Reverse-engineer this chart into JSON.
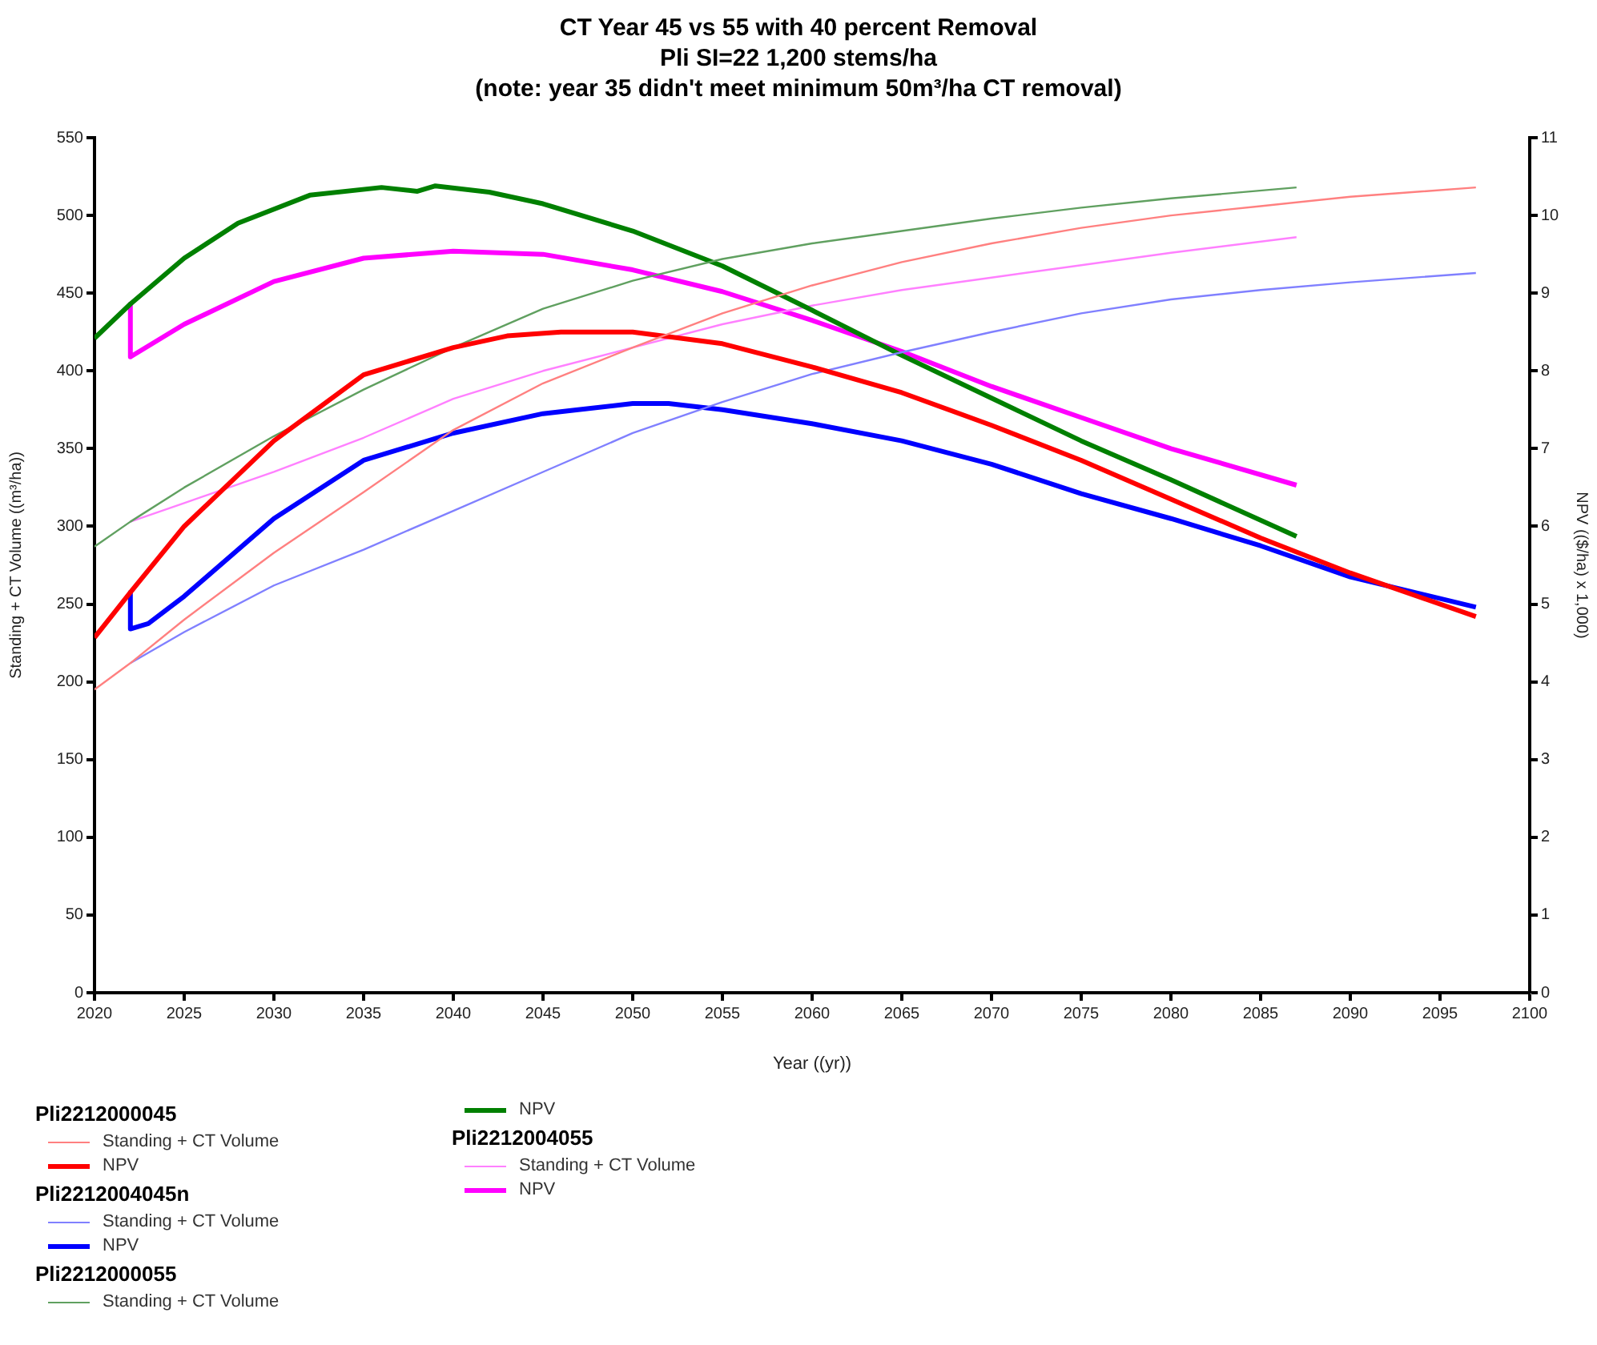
{
  "chart_data": {
    "type": "line",
    "title": "CT Year 45 vs 55 with 40 percent Removal",
    "subtitle": "Pli SI=22 1,200 stems/ha",
    "annotations": [
      "(note: year 35 didn't meet minimum 50m³/ha CT removal)",
      "Pli2212000045",
      "Pli2212004045n",
      "Pli2212000055",
      "Pli2212004055"
    ],
    "xlabel": "Year ((yr))",
    "ylabel": "Standing + CT Volume ((m³/ha))",
    "y2label": "NPV (($/ha) x 1,000)",
    "xlim": [
      2020,
      2100
    ],
    "xticks": [
      2020,
      2025,
      2030,
      2035,
      2040,
      2045,
      2050,
      2055,
      2060,
      2065,
      2070,
      2075,
      2080,
      2085,
      2090,
      2095,
      2100
    ],
    "ylim": [
      0,
      550
    ],
    "yticks": [
      0,
      50,
      100,
      150,
      200,
      250,
      300,
      350,
      400,
      450,
      500,
      550
    ],
    "y2lim": [
      0,
      11
    ],
    "y2ticks": [
      0,
      1,
      2,
      3,
      4,
      5,
      6,
      7,
      8,
      9,
      10,
      11
    ],
    "grid": false,
    "legend": "bottom",
    "marker": "none",
    "line_style": "solid",
    "series": [
      {
        "name": "Standing + CT Volume",
        "color": "#ff8080",
        "x": [
          2020,
          2022,
          2025,
          2030,
          2035,
          2040,
          2045,
          2050,
          2055,
          2060,
          2065,
          2070,
          2075,
          2080,
          2085,
          2090,
          2097
        ],
        "values": [
          195,
          212,
          240,
          283,
          322,
          362,
          392,
          415,
          437,
          455,
          470,
          482,
          492,
          500,
          506,
          512,
          518
        ]
      },
      {
        "name": "NPV",
        "color": "#ff0000",
        "axis": "y2",
        "x": [
          2020,
          2022,
          2025,
          2030,
          2035,
          2040,
          2043,
          2046,
          2050,
          2055,
          2060,
          2065,
          2070,
          2075,
          2080,
          2085,
          2090,
          2097
        ],
        "values": [
          4.57,
          5.15,
          6.0,
          7.1,
          7.95,
          8.3,
          8.45,
          8.5,
          8.5,
          8.35,
          8.05,
          7.72,
          7.3,
          6.85,
          6.35,
          5.85,
          5.4,
          4.84
        ]
      },
      {
        "name": "Standing + CT Volume",
        "color": "#8080ff",
        "x": [
          2022,
          2025,
          2030,
          2035,
          2040,
          2045,
          2050,
          2055,
          2060,
          2065,
          2070,
          2075,
          2080,
          2085,
          2090,
          2097
        ],
        "values": [
          212,
          232,
          262,
          285,
          310,
          335,
          360,
          380,
          398,
          412,
          425,
          437,
          446,
          452,
          457,
          463
        ]
      },
      {
        "name": "NPV",
        "color": "#0000ff",
        "axis": "y2",
        "x": [
          2022,
          2022,
          2023,
          2025,
          2030,
          2035,
          2040,
          2045,
          2050,
          2052,
          2055,
          2060,
          2065,
          2070,
          2075,
          2080,
          2085,
          2090,
          2097
        ],
        "values": [
          5.15,
          4.68,
          4.75,
          5.1,
          6.1,
          6.85,
          7.2,
          7.45,
          7.58,
          7.58,
          7.5,
          7.32,
          7.1,
          6.8,
          6.42,
          6.1,
          5.75,
          5.35,
          4.96
        ]
      },
      {
        "name": "Standing + CT Volume",
        "color": "#60a060",
        "x": [
          2020,
          2022,
          2025,
          2030,
          2035,
          2040,
          2045,
          2050,
          2055,
          2060,
          2065,
          2070,
          2075,
          2080,
          2087
        ],
        "values": [
          287,
          303,
          325,
          358,
          388,
          415,
          440,
          458,
          472,
          482,
          490,
          498,
          505,
          511,
          518
        ]
      },
      {
        "name": "NPV",
        "color": "#008000",
        "axis": "y2",
        "x": [
          2020,
          2022,
          2025,
          2028,
          2032,
          2036,
          2038,
          2039,
          2042,
          2045,
          2050,
          2055,
          2060,
          2065,
          2070,
          2075,
          2080,
          2087
        ],
        "values": [
          8.42,
          8.86,
          9.45,
          9.9,
          10.26,
          10.36,
          10.31,
          10.38,
          10.3,
          10.15,
          9.8,
          9.35,
          8.78,
          8.2,
          7.65,
          7.1,
          6.6,
          5.87
        ]
      },
      {
        "name": "Standing + CT Volume",
        "color": "#ff80ff",
        "x": [
          2022,
          2025,
          2030,
          2035,
          2040,
          2045,
          2050,
          2055,
          2060,
          2065,
          2070,
          2075,
          2080,
          2087
        ],
        "values": [
          303,
          315,
          335,
          357,
          382,
          400,
          415,
          430,
          442,
          452,
          460,
          468,
          476,
          486
        ]
      },
      {
        "name": "NPV",
        "color": "#ff00ff",
        "axis": "y2",
        "x": [
          2022,
          2022,
          2025,
          2030,
          2035,
          2040,
          2045,
          2050,
          2055,
          2060,
          2065,
          2070,
          2075,
          2080,
          2087
        ],
        "values": [
          8.86,
          8.18,
          8.6,
          9.15,
          9.45,
          9.54,
          9.5,
          9.3,
          9.02,
          8.65,
          8.25,
          7.8,
          7.4,
          7.0,
          6.53
        ]
      }
    ]
  }
}
